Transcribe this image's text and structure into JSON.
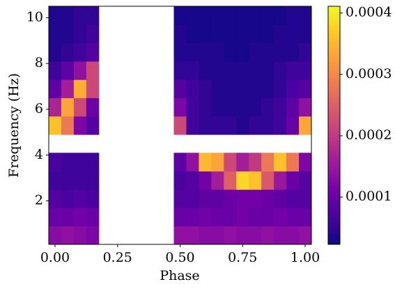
{
  "chart_data": {
    "type": "heatmap",
    "xlabel": "Phase",
    "ylabel": "Frequency (Hz)",
    "x": [
      0,
      0.05,
      0.1,
      0.15,
      0.2,
      0.25,
      0.3,
      0.35,
      0.4,
      0.45,
      0.5,
      0.55,
      0.6,
      0.65,
      0.7,
      0.75,
      0.8,
      0.85,
      0.9,
      0.95,
      1.0
    ],
    "y": [
      0.5,
      1.3,
      2.1,
      2.9,
      3.7,
      4.5,
      5.3,
      6.1,
      6.9,
      7.7,
      8.5,
      9.3,
      10.1
    ],
    "z": [
      [
        0.00013,
        0.00014,
        0.00013,
        0.00012,
        null,
        null,
        null,
        null,
        null,
        null,
        0.00014,
        0.00014,
        0.00013,
        0.00013,
        0.00014,
        0.00013,
        0.00013,
        0.00014,
        0.00013,
        0.00013,
        0.00014
      ],
      [
        0.0001,
        0.0001,
        0.00011,
        0.0001,
        null,
        null,
        null,
        null,
        null,
        null,
        0.0001,
        0.0001,
        0.00011,
        0.0001,
        0.0001,
        0.00011,
        0.0001,
        0.0001,
        0.00011,
        0.0001,
        0.0001
      ],
      [
        8e-05,
        7e-05,
        8e-05,
        7e-05,
        null,
        null,
        null,
        null,
        null,
        null,
        8e-05,
        8e-05,
        9e-05,
        9e-05,
        0.0001,
        0.00011,
        0.00011,
        0.0001,
        9e-05,
        8e-05,
        8e-05
      ],
      [
        6e-05,
        6e-05,
        6e-05,
        6e-05,
        null,
        null,
        null,
        null,
        null,
        null,
        7e-05,
        8e-05,
        0.00011,
        0.00016,
        0.00025,
        0.00038,
        0.00036,
        0.00024,
        0.00015,
        0.0001,
        8e-05
      ],
      [
        7e-05,
        6e-05,
        6e-05,
        6e-05,
        null,
        null,
        null,
        null,
        null,
        null,
        9e-05,
        0.00014,
        0.00035,
        0.00033,
        0.00022,
        0.00016,
        0.0002,
        0.00028,
        0.00036,
        0.00028,
        0.00012
      ],
      [
        null,
        null,
        null,
        null,
        null,
        null,
        null,
        null,
        null,
        null,
        null,
        null,
        null,
        null,
        null,
        null,
        null,
        null,
        null,
        null,
        null
      ],
      [
        0.00036,
        0.00028,
        0.00012,
        8e-05,
        null,
        null,
        null,
        null,
        null,
        null,
        0.00022,
        6e-05,
        5e-05,
        5e-05,
        5e-05,
        4e-05,
        5e-05,
        5e-05,
        6e-05,
        0.0001,
        0.00033
      ],
      [
        0.00017,
        0.00033,
        0.00022,
        0.0001,
        null,
        null,
        null,
        null,
        null,
        null,
        0.00012,
        6e-05,
        5e-05,
        4e-05,
        4e-05,
        4e-05,
        4e-05,
        5e-05,
        6e-05,
        9e-05,
        0.00014
      ],
      [
        9e-05,
        0.00016,
        0.00034,
        0.00022,
        null,
        null,
        null,
        null,
        null,
        null,
        8e-05,
        6e-05,
        5e-05,
        4e-05,
        4e-05,
        4e-05,
        4e-05,
        4e-05,
        5e-05,
        7e-05,
        8e-05
      ],
      [
        6e-05,
        9e-05,
        0.00014,
        0.00022,
        null,
        null,
        null,
        null,
        null,
        null,
        5e-05,
        5e-05,
        4e-05,
        4e-05,
        4e-05,
        4e-05,
        4e-05,
        4e-05,
        5e-05,
        6e-05,
        6e-05
      ],
      [
        4e-05,
        5e-05,
        6e-05,
        8e-05,
        null,
        null,
        null,
        null,
        null,
        null,
        4e-05,
        4e-05,
        4e-05,
        4e-05,
        3e-05,
        3e-05,
        4e-05,
        4e-05,
        4e-05,
        4e-05,
        5e-05
      ],
      [
        4e-05,
        4e-05,
        5e-05,
        6e-05,
        null,
        null,
        null,
        null,
        null,
        null,
        4e-05,
        3e-05,
        3e-05,
        3e-05,
        3e-05,
        3e-05,
        3e-05,
        3e-05,
        4e-05,
        4e-05,
        4e-05
      ],
      [
        4e-05,
        4e-05,
        5e-05,
        5e-05,
        null,
        null,
        null,
        null,
        null,
        null,
        3e-05,
        3e-05,
        3e-05,
        3e-05,
        3e-05,
        3e-05,
        3e-05,
        3e-05,
        3e-05,
        4e-05,
        4e-05
      ]
    ],
    "xlim": [
      -0.025,
      1.025
    ],
    "ylim": [
      0.1,
      10.5
    ],
    "xticks": [
      {
        "value": 0,
        "label": "0.00"
      },
      {
        "value": 0.25,
        "label": "0.25"
      },
      {
        "value": 0.5,
        "label": "0.50"
      },
      {
        "value": 0.75,
        "label": "0.75"
      },
      {
        "value": 1.0,
        "label": "1.00"
      }
    ],
    "yticks": [
      2,
      4,
      6,
      8,
      10
    ],
    "clim": [
      2.3e-05,
      0.000411
    ],
    "cticks": [
      0.0001,
      0.0002,
      0.0003,
      0.0004
    ],
    "colormap": [
      "#0d0887",
      "#46039f",
      "#7201a8",
      "#9c179e",
      "#bd3786",
      "#d8576b",
      "#ed7953",
      "#fb9f3a",
      "#fdca26",
      "#f0f921"
    ]
  }
}
